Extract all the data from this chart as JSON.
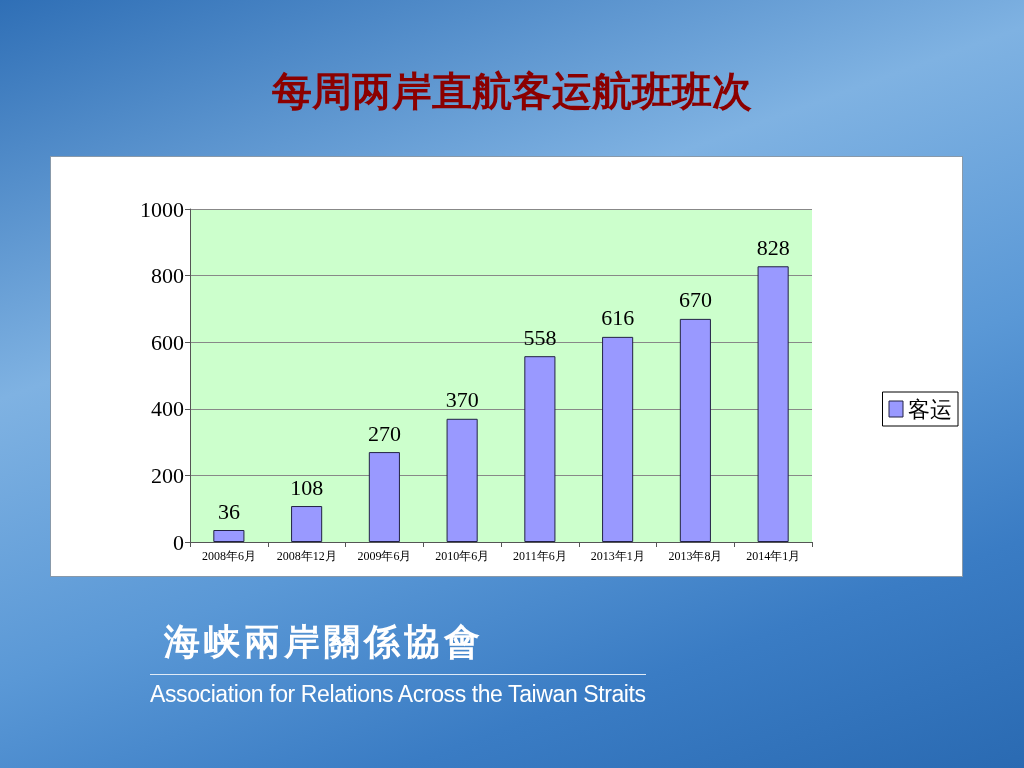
{
  "chart_data": {
    "type": "bar",
    "title": "每周两岸直航客运航班班次",
    "categories": [
      "2008年6月",
      "2008年12月",
      "2009年6月",
      "2010年6月",
      "2011年6月",
      "2013年1月",
      "2013年8月",
      "2014年1月"
    ],
    "series": [
      {
        "name": "客运",
        "color": "#9999ff",
        "values": [
          36,
          108,
          270,
          370,
          558,
          616,
          670,
          828
        ]
      }
    ],
    "ylim": [
      0,
      1000
    ],
    "yticks": [
      0,
      200,
      400,
      600,
      800,
      1000
    ],
    "grid": "y",
    "legend": "right",
    "data_labels": true,
    "annotations": [
      "海峡兩岸關係協會",
      "Association for Relations Across the Taiwan Straits"
    ]
  }
}
